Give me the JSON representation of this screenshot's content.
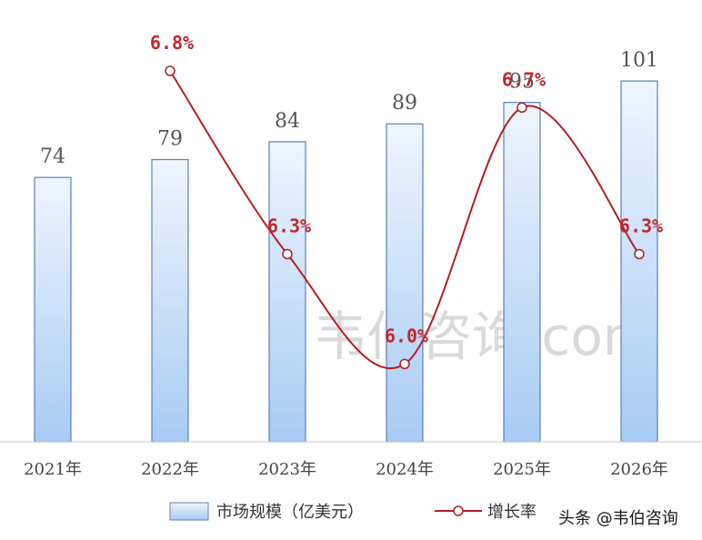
{
  "chart_data": {
    "type": "bar",
    "categories": [
      "2021年",
      "2022年",
      "2023年",
      "2024年",
      "2025年",
      "2026年"
    ],
    "series": [
      {
        "name": "市场规模（亿美元）",
        "type": "bar",
        "values": [
          74,
          79,
          84,
          89,
          95,
          101
        ],
        "labels": [
          "74",
          "79",
          "84",
          "89",
          "95",
          "101"
        ]
      },
      {
        "name": "增长率",
        "type": "line",
        "smooth": true,
        "values": [
          null,
          6.8,
          6.3,
          6.0,
          6.7,
          6.3
        ],
        "labels": [
          "",
          "6.8%",
          "6.3%",
          "6.0%",
          "6.7%",
          "6.3%"
        ]
      }
    ],
    "legend_position": "bottom",
    "grid": false,
    "colors": {
      "bar_top": "#eef5fe",
      "bar_bottom": "#a8cbf3",
      "bar_border": "#5a7fbd",
      "line": "#b21f24",
      "rate_label": "#c0282d"
    }
  },
  "watermark": "韦伯咨询.com",
  "source_credit": "头条 @韦伯咨询"
}
